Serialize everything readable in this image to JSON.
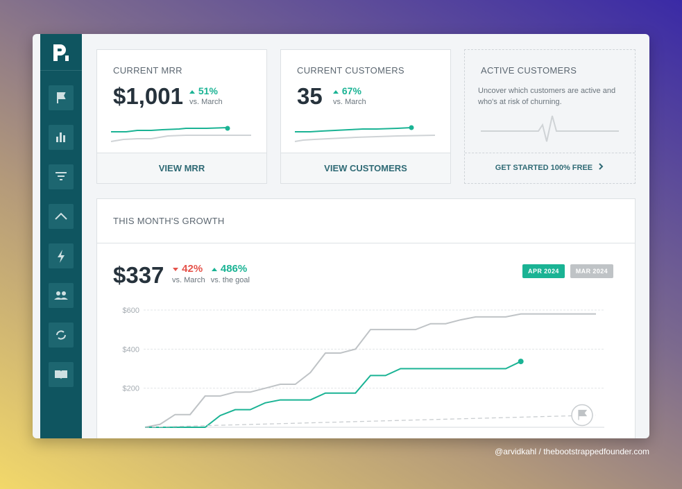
{
  "metrics": [
    {
      "title": "CURRENT MRR",
      "value": "$1,001",
      "change": "51%",
      "direction": "up",
      "comparison": "vs. March",
      "link": "VIEW MRR"
    },
    {
      "title": "CURRENT CUSTOMERS",
      "value": "35",
      "change": "67%",
      "direction": "up",
      "comparison": "vs. March",
      "link": "VIEW CUSTOMERS"
    }
  ],
  "promo": {
    "title": "ACTIVE CUSTOMERS",
    "description": "Uncover which customers are active and who's at risk of churning.",
    "link": "GET STARTED 100% FREE"
  },
  "growth": {
    "title": "THIS MONTH'S GROWTH",
    "value": "$337",
    "changes": [
      {
        "value": "42%",
        "direction": "down",
        "label": "vs. March"
      },
      {
        "value": "486%",
        "direction": "up",
        "label": "vs. the goal"
      }
    ],
    "chart_data": {
      "type": "line",
      "x": [
        1,
        2,
        3,
        4,
        5,
        6,
        7,
        8,
        9,
        10,
        11,
        12,
        13,
        14,
        15,
        16,
        17,
        18,
        19,
        20,
        21,
        22,
        23,
        24,
        25,
        26,
        27,
        28,
        29,
        30,
        31
      ],
      "xlim": [
        1,
        31
      ],
      "ylim": [
        0,
        600
      ],
      "yticks": [
        {
          "value": 200,
          "label": "$200"
        },
        {
          "value": 400,
          "label": "$400"
        },
        {
          "value": 600,
          "label": "$600"
        }
      ],
      "grid": true,
      "series": [
        {
          "name": "APR 2024",
          "color": "#1ab394",
          "values": [
            0,
            0,
            0,
            0,
            0,
            60,
            90,
            90,
            125,
            140,
            140,
            140,
            175,
            175,
            175,
            265,
            265,
            300,
            300,
            300,
            300,
            300,
            300,
            300,
            300,
            337,
            null,
            null,
            null,
            null,
            null
          ]
        },
        {
          "name": "MAR 2024",
          "color": "#bfc3c6",
          "values": [
            0,
            15,
            65,
            65,
            160,
            160,
            180,
            180,
            200,
            220,
            220,
            280,
            380,
            380,
            400,
            500,
            500,
            500,
            500,
            530,
            530,
            550,
            565,
            565,
            565,
            580,
            580,
            580,
            580,
            580,
            580
          ]
        },
        {
          "color": "#c9cdd0",
          "dashed": true,
          "x": [
            1,
            31
          ],
          "values": [
            0,
            62
          ]
        }
      ]
    }
  },
  "credit": "@arvidkahl / thebootstrappedfounder.com"
}
